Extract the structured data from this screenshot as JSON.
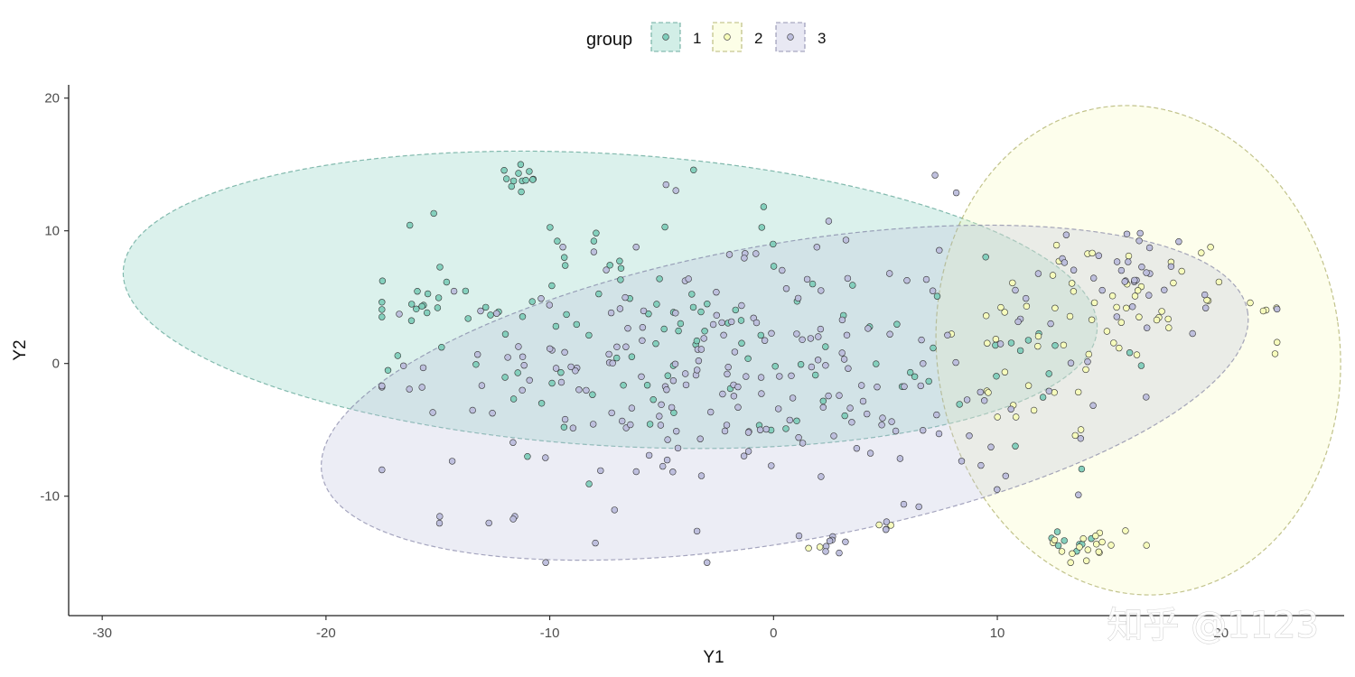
{
  "chart_data": {
    "type": "scatter",
    "title": "",
    "xlabel": "Y1",
    "ylabel": "Y2",
    "xlim": [
      -31.5,
      25.5
    ],
    "ylim": [
      -19,
      21
    ],
    "xticks": [
      -30,
      -20,
      -10,
      0,
      10,
      20
    ],
    "yticks": [
      -10,
      0,
      10,
      20
    ],
    "grid": false,
    "legend": {
      "title": "group",
      "position": "top",
      "entries": [
        "1",
        "2",
        "3"
      ]
    },
    "colors": {
      "1": "#7fcdbb",
      "2": "#f7fcb9",
      "3": "#bcbddc"
    },
    "ellipses": [
      {
        "group": "1",
        "cx": -7.3,
        "cy": 4.8,
        "rx": 21.8,
        "ry": 11.0,
        "angle_deg": -3.5
      },
      {
        "group": "2",
        "cx": 16.3,
        "cy": 1.0,
        "rx": 9.0,
        "ry": 18.5,
        "angle_deg": 8
      },
      {
        "group": "3",
        "cx": 0.5,
        "cy": -2.2,
        "rx": 21.0,
        "ry": 11.2,
        "angle_deg": 10
      }
    ],
    "clusters": [
      {
        "group": "1",
        "cx": -11.3,
        "cy": 13.7,
        "sx": 0.5,
        "sy": 0.5,
        "n": 12
      },
      {
        "group": "1",
        "cx": -15.5,
        "cy": 4.8,
        "sx": 1.2,
        "sy": 0.7,
        "n": 12
      },
      {
        "group": "1",
        "cx": -3.5,
        "cy": 2.5,
        "sx": 7.0,
        "sy": 4.5,
        "n": 110
      },
      {
        "group": "1",
        "cx": 10.5,
        "cy": 1.0,
        "sx": 1.5,
        "sy": 2.5,
        "n": 10
      },
      {
        "group": "1",
        "cx": 13.5,
        "cy": -13.6,
        "sx": 0.8,
        "sy": 0.6,
        "n": 8
      },
      {
        "group": "2",
        "cx": 16.5,
        "cy": 5.5,
        "sx": 2.5,
        "sy": 2.5,
        "n": 40
      },
      {
        "group": "2",
        "cx": 11.5,
        "cy": 0.0,
        "sx": 2.0,
        "sy": 3.5,
        "n": 25
      },
      {
        "group": "2",
        "cx": 14.0,
        "cy": -13.5,
        "sx": 0.9,
        "sy": 0.8,
        "n": 18
      },
      {
        "group": "2",
        "cx": 21.8,
        "cy": 4.5,
        "sx": 0.4,
        "sy": 0.3,
        "n": 4
      },
      {
        "group": "2",
        "cx": 5.0,
        "cy": -12.0,
        "sx": 0.2,
        "sy": 0.2,
        "n": 2
      },
      {
        "group": "2",
        "cx": 2.0,
        "cy": -14.0,
        "sx": 0.2,
        "sy": 0.2,
        "n": 2
      },
      {
        "group": "3",
        "cx": -1.0,
        "cy": -1.0,
        "sx": 8.0,
        "sy": 5.2,
        "n": 230
      },
      {
        "group": "3",
        "cx": 14.5,
        "cy": 7.0,
        "sx": 2.5,
        "sy": 2.0,
        "n": 30
      },
      {
        "group": "3",
        "cx": -12.0,
        "cy": -11.6,
        "sx": 0.3,
        "sy": 0.2,
        "n": 3
      },
      {
        "group": "3",
        "cx": -14.8,
        "cy": -11.7,
        "sx": 0.2,
        "sy": 0.2,
        "n": 2
      },
      {
        "group": "3",
        "cx": 2.3,
        "cy": -13.5,
        "sx": 0.4,
        "sy": 0.5,
        "n": 6
      },
      {
        "group": "3",
        "cx": 5.0,
        "cy": -12.1,
        "sx": 0.2,
        "sy": 0.2,
        "n": 3
      },
      {
        "group": "3",
        "cx": -8.0,
        "cy": -13.6,
        "sx": 0.1,
        "sy": 0.1,
        "n": 1
      }
    ]
  },
  "watermark": "知乎 @1123"
}
